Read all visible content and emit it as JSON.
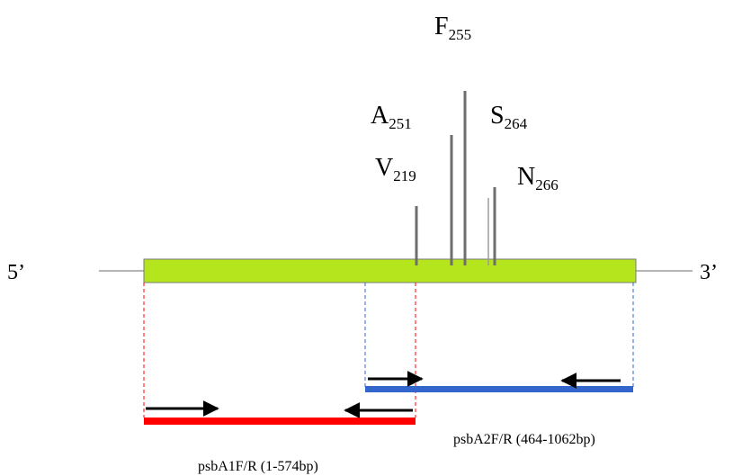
{
  "diagram": {
    "five_prime": "5’",
    "three_prime": "3’",
    "gene_color": "#b5e61d",
    "sites": [
      {
        "letter": "F",
        "position": "255"
      },
      {
        "letter": "A",
        "position": "251"
      },
      {
        "letter": "S",
        "position": "264"
      },
      {
        "letter": "V",
        "position": "219"
      },
      {
        "letter": "N",
        "position": "266"
      }
    ],
    "amplicons": [
      {
        "label": "psbA1F/R (1-574bp)",
        "color": "#ff0000"
      },
      {
        "label": "psbA2F/R (464-1062bp)",
        "color": "#3366cc"
      }
    ]
  }
}
